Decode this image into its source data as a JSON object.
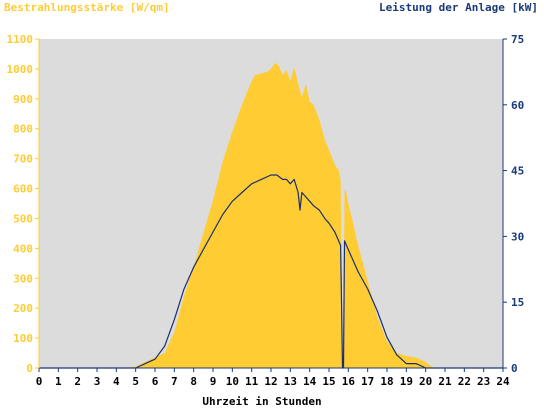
{
  "chart_data": {
    "type": "area",
    "left_axis_label": "Bestrahlungsstärke [W/qm]",
    "right_axis_label": "Leistung der Anlage [kW]",
    "xlabel": "Uhrzeit in Stunden",
    "xlim": [
      0,
      24
    ],
    "ylim_left": [
      0,
      1100
    ],
    "ylim_right": [
      0,
      75
    ],
    "x_ticks": [
      "0",
      "1",
      "2",
      "3",
      "4",
      "5",
      "6",
      "7",
      "8",
      "9",
      "10",
      "11",
      "12",
      "13",
      "14",
      "15",
      "16",
      "17",
      "18",
      "19",
      "20",
      "21",
      "22",
      "23",
      "24"
    ],
    "y_left_ticks": [
      "0",
      "100",
      "200",
      "300",
      "400",
      "500",
      "600",
      "700",
      "800",
      "900",
      "1000",
      "1100"
    ],
    "y_right_ticks": [
      "0",
      "15",
      "30",
      "45",
      "60",
      "75"
    ],
    "grid": false,
    "colors": {
      "irradiance": "#ffcc33",
      "power": "#1a2f6e",
      "plot_bg": "#dcdcdc",
      "left_axis_text": "#ffcc33",
      "right_axis_text": "#1a3a7a",
      "x_axis_text": "#000000"
    },
    "series": [
      {
        "axis": "left",
        "style": "area",
        "x": [
          0,
          4.5,
          5.0,
          5.5,
          6.0,
          6.5,
          7.0,
          7.5,
          8.0,
          8.5,
          9.0,
          9.5,
          10.0,
          10.5,
          11.0,
          11.2,
          11.5,
          11.8,
          12.0,
          12.2,
          12.4,
          12.6,
          12.8,
          13.0,
          13.2,
          13.4,
          13.6,
          13.8,
          14.0,
          14.2,
          14.5,
          14.8,
          15.0,
          15.3,
          15.5,
          15.6,
          15.7,
          15.75,
          15.8,
          15.85,
          16.0,
          16.3,
          16.5,
          16.8,
          17.0,
          17.5,
          18.0,
          18.5,
          19.0,
          19.5,
          20.0,
          20.3,
          20.5,
          24
        ],
        "y": [
          0,
          0,
          5,
          20,
          35,
          50,
          120,
          240,
          340,
          450,
          560,
          690,
          790,
          880,
          960,
          980,
          985,
          990,
          1000,
          1020,
          1010,
          980,
          995,
          960,
          1005,
          950,
          905,
          950,
          890,
          880,
          830,
          760,
          730,
          680,
          660,
          630,
          0,
          0,
          590,
          600,
          550,
          470,
          410,
          340,
          290,
          170,
          90,
          50,
          40,
          35,
          20,
          5,
          0,
          0
        ]
      },
      {
        "axis": "right",
        "style": "line",
        "x": [
          0,
          5.0,
          5.5,
          6.0,
          6.5,
          7.0,
          7.5,
          8.0,
          8.5,
          9.0,
          9.5,
          10.0,
          10.5,
          11.0,
          11.5,
          12.0,
          12.3,
          12.6,
          12.8,
          13.0,
          13.2,
          13.4,
          13.5,
          13.6,
          13.8,
          14.0,
          14.2,
          14.5,
          14.8,
          15.0,
          15.3,
          15.6,
          15.65,
          15.7,
          15.75,
          15.8,
          15.9,
          16.0,
          16.5,
          17.0,
          17.5,
          18.0,
          18.5,
          19.0,
          19.5,
          20.0,
          20.5,
          24
        ],
        "y": [
          0,
          0,
          1,
          2,
          5,
          11,
          18,
          23,
          27,
          31,
          35,
          38,
          40,
          42,
          43,
          44,
          44,
          43,
          43,
          42,
          43,
          40,
          36,
          40,
          39,
          38,
          37,
          36,
          34,
          33,
          31,
          28,
          14,
          0,
          0,
          29,
          28,
          27,
          22,
          18,
          13,
          7,
          3,
          1,
          1,
          0,
          0,
          0
        ]
      }
    ]
  }
}
